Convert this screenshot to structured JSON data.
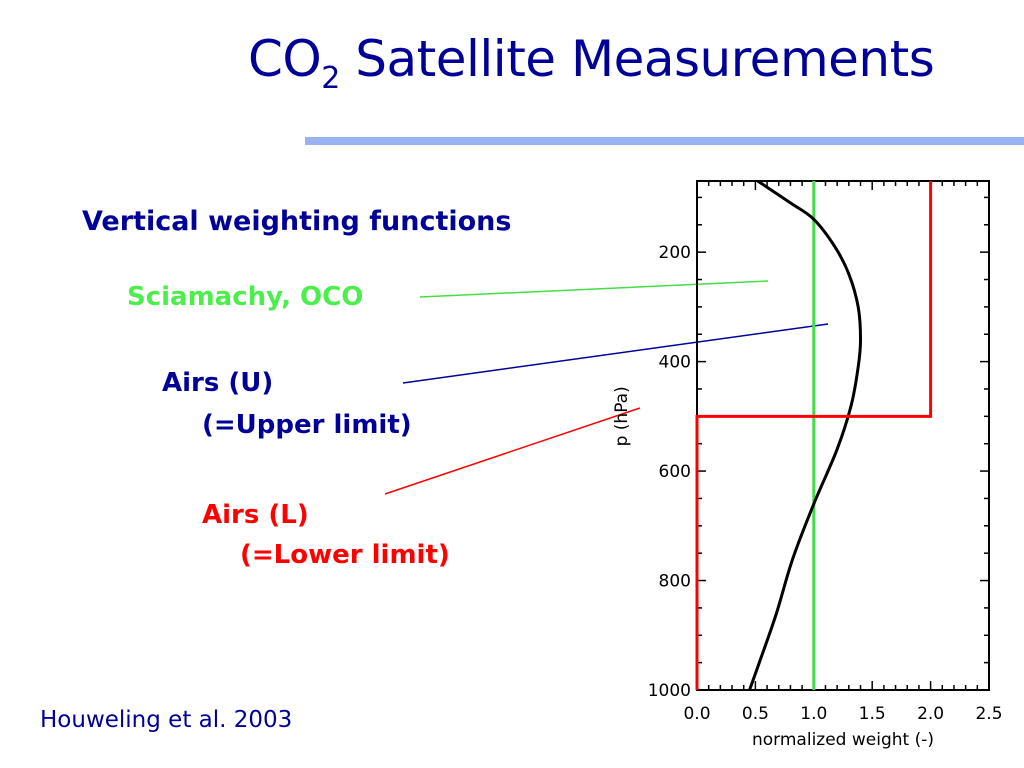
{
  "slide": {
    "title_main": "CO",
    "title_sub": "2",
    "title_rest": " Satellite Measurements",
    "heading": "Vertical weighting functions",
    "label_sciamachy": "Sciamachy, OCO",
    "label_airs_u": "Airs (U)",
    "label_airs_u_note": "(=Upper limit)",
    "label_airs_l": "Airs (L)",
    "label_airs_l_note": "(=Lower limit)",
    "citation": "Houweling et al. 2003"
  },
  "colors": {
    "title": "#000099",
    "sciamachy": "#44dd44",
    "airs_u": "#000099",
    "airs_l": "#ff0000",
    "curve": "#000000"
  },
  "chart_data": {
    "type": "line",
    "xlabel": "normalized weight (-)",
    "ylabel": "p (hPa)",
    "xlim": [
      0,
      2.5
    ],
    "ylim": [
      1000,
      70
    ],
    "y_inverted": true,
    "x_ticks": [
      "0.0",
      "0.5",
      "1.0",
      "1.5",
      "2.0",
      "2.5"
    ],
    "y_ticks": [
      "200",
      "400",
      "600",
      "800",
      "1000"
    ],
    "series": [
      {
        "name": "Sciamachy, OCO",
        "color": "#44dd44",
        "points": [
          [
            1.0,
            70
          ],
          [
            1.0,
            1000
          ]
        ]
      },
      {
        "name": "Airs (U)",
        "color": "#000000",
        "points": [
          [
            0.52,
            70
          ],
          [
            0.8,
            110
          ],
          [
            1.0,
            140
          ],
          [
            1.18,
            190
          ],
          [
            1.3,
            240
          ],
          [
            1.38,
            300
          ],
          [
            1.4,
            360
          ],
          [
            1.38,
            410
          ],
          [
            1.32,
            480
          ],
          [
            1.2,
            560
          ],
          [
            1.0,
            660
          ],
          [
            0.82,
            760
          ],
          [
            0.68,
            860
          ],
          [
            0.55,
            940
          ],
          [
            0.45,
            1000
          ]
        ]
      },
      {
        "name": "Airs (L)",
        "color": "#ff0000",
        "points": [
          [
            2.0,
            70
          ],
          [
            2.0,
            500
          ],
          [
            0.0,
            500
          ],
          [
            0.0,
            1000
          ]
        ]
      }
    ]
  }
}
